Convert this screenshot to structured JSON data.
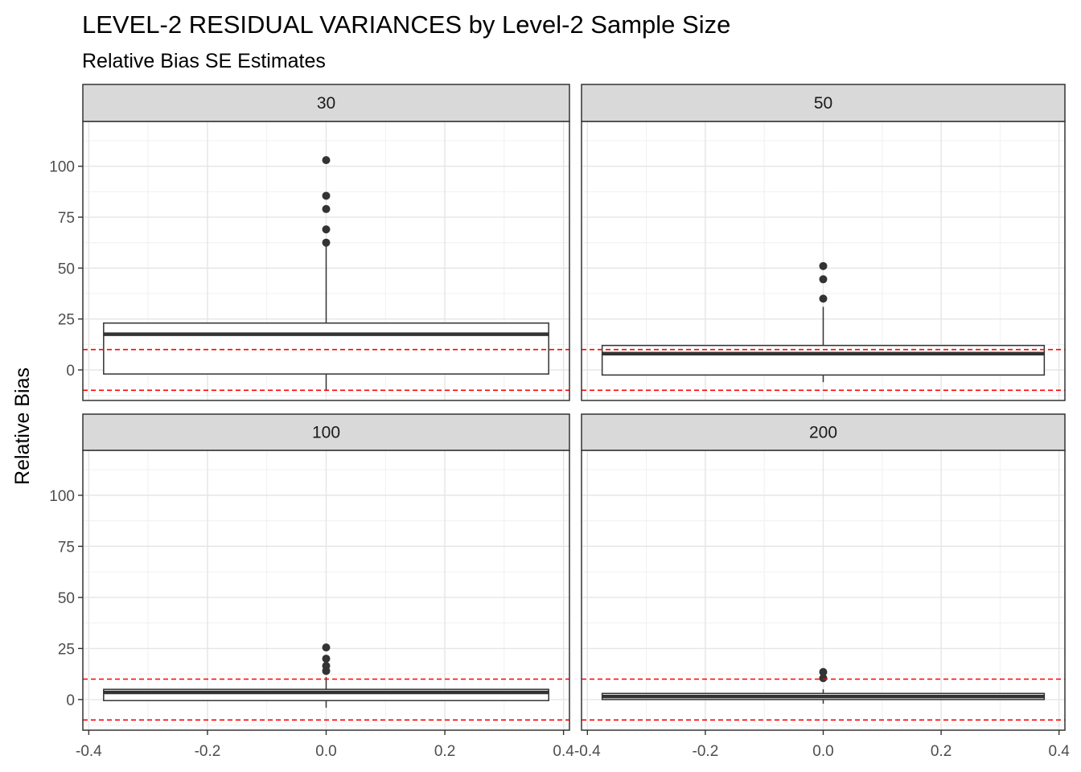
{
  "chart_data": {
    "type": "boxplot",
    "title": "LEVEL-2 RESIDUAL VARIANCES by Level-2 Sample Size",
    "subtitle": "Relative Bias SE Estimates",
    "xlabel": "",
    "ylabel": "Relative Bias",
    "xlim": [
      -0.41,
      0.41
    ],
    "ylim": [
      -15,
      122
    ],
    "x_ticks": [
      "-0.4",
      "-0.2",
      "0.0",
      "0.2",
      "0.4"
    ],
    "y_ticks": [
      "0",
      "25",
      "50",
      "75",
      "100"
    ],
    "grid": true,
    "reference_lines": [
      10,
      -10
    ],
    "reference_line_color": "#ff0000",
    "box_half_width": 0.375,
    "panels": [
      {
        "label": "30",
        "stats": {
          "lower_whisker": -10,
          "q1": -2,
          "median": 17.5,
          "q3": 23,
          "upper_whisker": 61
        },
        "outliers": [
          62.5,
          69,
          79,
          85.5,
          103
        ]
      },
      {
        "label": "50",
        "stats": {
          "lower_whisker": -6,
          "q1": -2.5,
          "median": 8,
          "q3": 12,
          "upper_whisker": 31
        },
        "outliers": [
          35,
          44.5,
          51
        ]
      },
      {
        "label": "100",
        "stats": {
          "lower_whisker": -4,
          "q1": -0.5,
          "median": 3.5,
          "q3": 5,
          "upper_whisker": 11
        },
        "outliers": [
          14,
          16.5,
          20,
          25.5
        ]
      },
      {
        "label": "200",
        "stats": {
          "lower_whisker": -2,
          "q1": 0,
          "median": 1.5,
          "q3": 3,
          "upper_whisker": 5
        },
        "outliers": [
          10.5,
          13.5
        ]
      }
    ]
  }
}
